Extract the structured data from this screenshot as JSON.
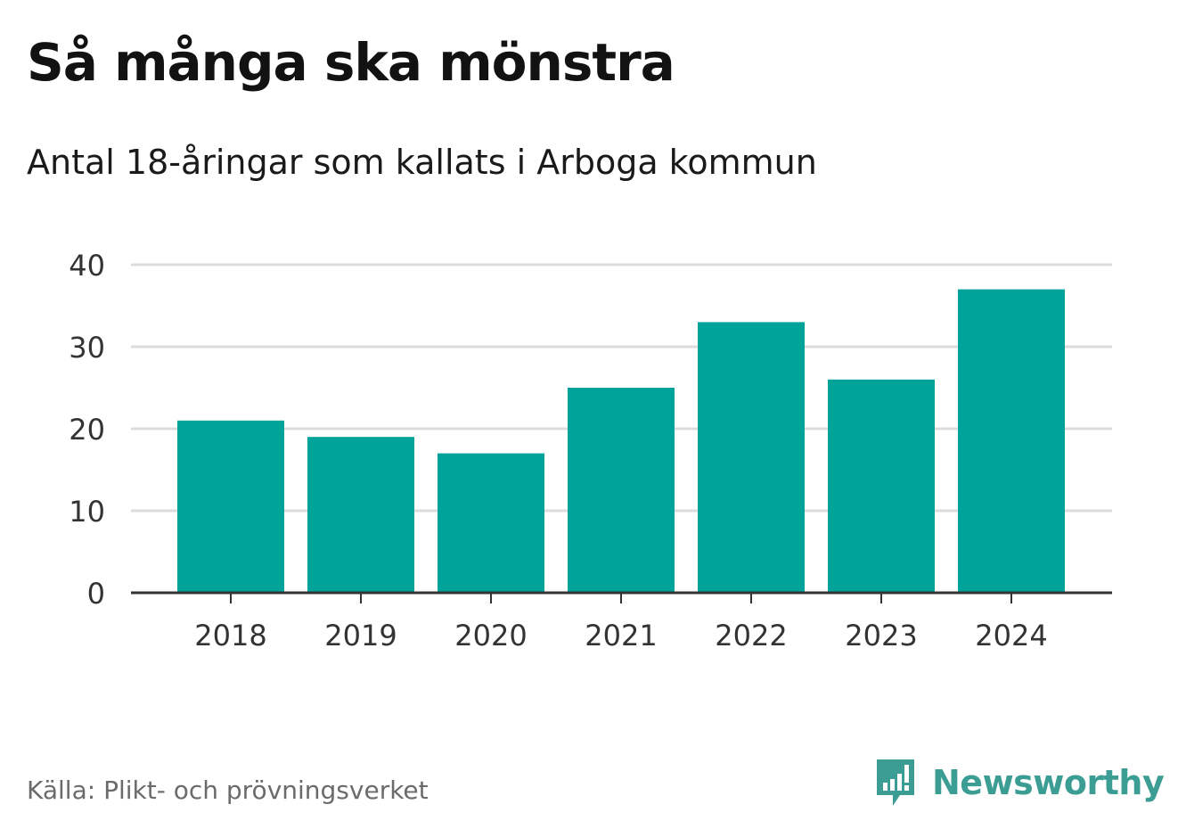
{
  "header": {
    "title": "Så många ska mönstra",
    "subtitle": "Antal 18-åringar som kallats i Arboga kommun"
  },
  "footer": {
    "source": "Källa: Plikt- och prövningsverket",
    "brand_name": "Newsworthy",
    "brand_icon": "newsworthy-logo-icon"
  },
  "colors": {
    "bar": "#00a39a",
    "grid": "#dcdcdc",
    "axis": "#333333",
    "tick_text": "#333333",
    "brand": "#3b9d93"
  },
  "chart_data": {
    "type": "bar",
    "title": "Så många ska mönstra",
    "subtitle": "Antal 18-åringar som kallats i Arboga kommun",
    "xlabel": "",
    "ylabel": "",
    "categories": [
      "2018",
      "2019",
      "2020",
      "2021",
      "2022",
      "2023",
      "2024"
    ],
    "values": [
      21,
      19,
      17,
      25,
      33,
      26,
      37
    ],
    "ylim": [
      0,
      40
    ],
    "yticks": [
      0,
      10,
      20,
      30,
      40
    ],
    "grid": true,
    "legend": "none"
  }
}
